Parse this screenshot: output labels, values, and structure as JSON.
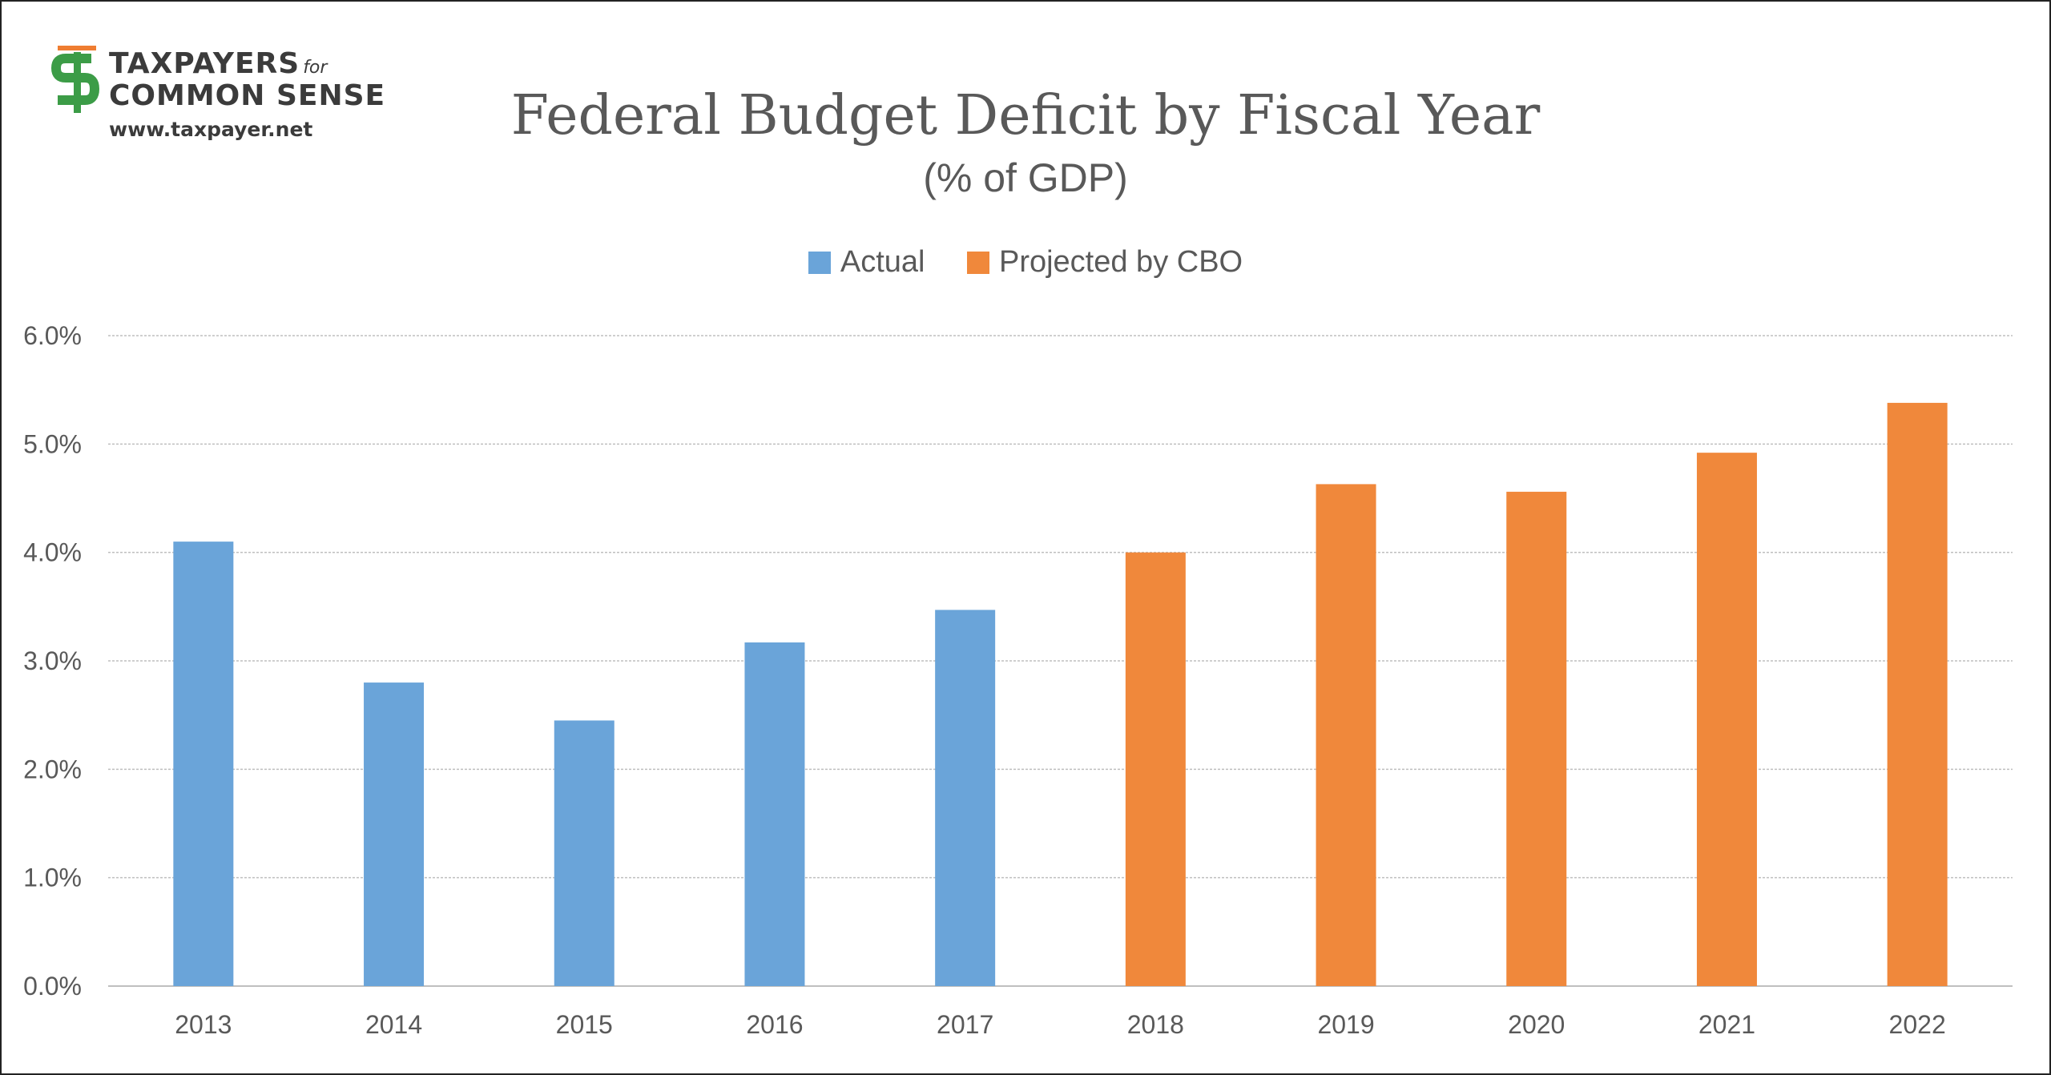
{
  "brand": {
    "line1": "TAXPAYERS",
    "for": "for",
    "line2": "COMMON SENSE",
    "url": "www.taxpayer.net",
    "colors": {
      "green": "#3c9c47",
      "orange": "#ef7d31"
    }
  },
  "chart_data": {
    "type": "bar",
    "title": "Federal Budget Deficit by Fiscal Year",
    "subtitle": "(% of GDP)",
    "categories": [
      "2013",
      "2014",
      "2015",
      "2016",
      "2017",
      "2018",
      "2019",
      "2020",
      "2021",
      "2022"
    ],
    "series": [
      {
        "name": "Actual",
        "color": "#6aa4d9",
        "values": [
          4.1,
          2.8,
          2.45,
          3.17,
          3.47,
          null,
          null,
          null,
          null,
          null
        ]
      },
      {
        "name": "Projected by CBO",
        "color": "#f0883b",
        "values": [
          null,
          null,
          null,
          null,
          null,
          4.0,
          4.63,
          4.56,
          4.92,
          5.38
        ]
      }
    ],
    "ylim": [
      0,
      6
    ],
    "yticks": [
      0,
      1,
      2,
      3,
      4,
      5,
      6
    ],
    "ytick_labels": [
      "0.0%",
      "1.0%",
      "2.0%",
      "3.0%",
      "4.0%",
      "5.0%",
      "6.0%"
    ],
    "grid": true,
    "legend_position": "top-center",
    "xlabel": "",
    "ylabel": ""
  }
}
